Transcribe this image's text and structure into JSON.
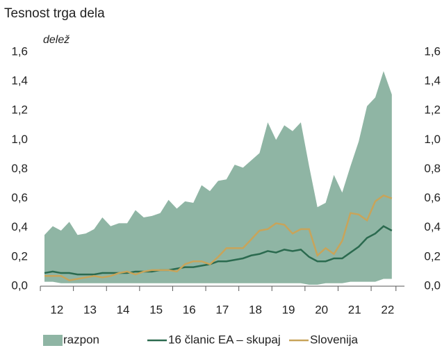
{
  "chart_data": {
    "type": "range-line",
    "title": "Tesnost trga dela",
    "y_label": "delež",
    "categories": [
      "12",
      null,
      null,
      null,
      "13",
      null,
      null,
      null,
      "14",
      null,
      null,
      null,
      "15",
      null,
      null,
      null,
      "16",
      null,
      null,
      null,
      "17",
      null,
      null,
      null,
      "18",
      null,
      null,
      null,
      "19",
      null,
      null,
      null,
      "20",
      null,
      null,
      null,
      "21",
      null,
      null,
      null,
      "22",
      null,
      null
    ],
    "ylim": [
      0,
      1.6
    ],
    "yticks": [
      {
        "value": 0,
        "label": "0,0"
      },
      {
        "value": 0.2,
        "label": "0,2"
      },
      {
        "value": 0.4,
        "label": "0,4"
      },
      {
        "value": 0.6,
        "label": "0,6"
      },
      {
        "value": 0.8,
        "label": "0,8"
      },
      {
        "value": 1.0,
        "label": "1,0"
      },
      {
        "value": 1.2,
        "label": "1,2"
      },
      {
        "value": 1.4,
        "label": "1,4"
      },
      {
        "value": 1.6,
        "label": "1,6"
      }
    ],
    "range": {
      "name": "razpon",
      "color": "#8fb5a4",
      "lower": [
        0.03,
        0.03,
        0.02,
        0.02,
        0.02,
        0.02,
        0.02,
        0.02,
        0.02,
        0.02,
        0.02,
        0.02,
        0.02,
        0.02,
        0.02,
        0.02,
        0.02,
        0.02,
        0.02,
        0.02,
        0.02,
        0.02,
        0.02,
        0.02,
        0.02,
        0.02,
        0.02,
        0.02,
        0.02,
        0.02,
        0.02,
        0.02,
        0.01,
        0.01,
        0.02,
        0.02,
        0.02,
        0.03,
        0.03,
        0.03,
        0.03,
        0.05,
        0.05
      ],
      "upper": [
        0.35,
        0.41,
        0.38,
        0.44,
        0.35,
        0.36,
        0.39,
        0.47,
        0.41,
        0.43,
        0.43,
        0.52,
        0.47,
        0.48,
        0.5,
        0.59,
        0.53,
        0.58,
        0.57,
        0.69,
        0.65,
        0.72,
        0.73,
        0.83,
        0.81,
        0.86,
        0.91,
        1.12,
        1.0,
        1.1,
        1.06,
        1.12,
        0.82,
        0.54,
        0.57,
        0.76,
        0.64,
        0.82,
        0.99,
        1.23,
        1.29,
        1.47,
        1.31
      ]
    },
    "series": [
      {
        "name": "16 članic EA – skupaj",
        "color": "#2b6a4f",
        "values": [
          0.09,
          0.1,
          0.09,
          0.09,
          0.08,
          0.08,
          0.08,
          0.09,
          0.09,
          0.09,
          0.09,
          0.1,
          0.1,
          0.1,
          0.11,
          0.11,
          0.12,
          0.13,
          0.13,
          0.14,
          0.15,
          0.17,
          0.17,
          0.18,
          0.19,
          0.21,
          0.22,
          0.24,
          0.23,
          0.25,
          0.24,
          0.25,
          0.2,
          0.17,
          0.17,
          0.19,
          0.19,
          0.23,
          0.27,
          0.33,
          0.36,
          0.41,
          0.38
        ]
      },
      {
        "name": "Slovenija",
        "color": "#c8a45a",
        "values": [
          0.07,
          0.07,
          0.07,
          0.04,
          0.05,
          0.06,
          0.07,
          0.06,
          0.07,
          0.09,
          0.1,
          0.08,
          0.1,
          0.11,
          0.11,
          0.11,
          0.1,
          0.15,
          0.17,
          0.17,
          0.15,
          0.2,
          0.26,
          0.26,
          0.26,
          0.32,
          0.38,
          0.39,
          0.43,
          0.42,
          0.36,
          0.39,
          0.39,
          0.21,
          0.26,
          0.22,
          0.31,
          0.5,
          0.49,
          0.45,
          0.58,
          0.62,
          0.6
        ]
      }
    ]
  }
}
